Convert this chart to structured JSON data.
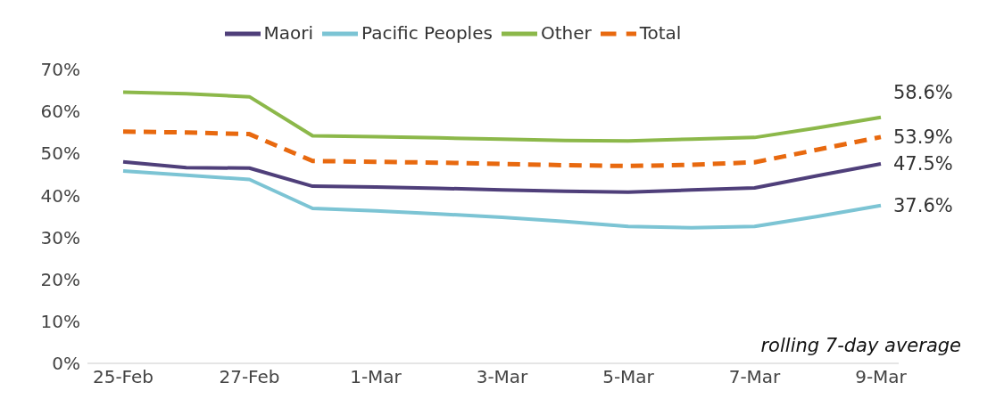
{
  "chart_data": {
    "type": "line",
    "categories": [
      "25-Feb",
      null,
      "27-Feb",
      null,
      "1-Mar",
      null,
      "3-Mar",
      null,
      "5-Mar",
      null,
      "7-Mar",
      null,
      "9-Mar"
    ],
    "series": [
      {
        "name": "Maori",
        "color": "#4f3f7a",
        "values": [
          48.0,
          46.6,
          46.5,
          42.2,
          42.0,
          41.7,
          41.3,
          41.0,
          40.8,
          41.3,
          41.8,
          44.7,
          47.5
        ],
        "value_labels": [
          null,
          null,
          null,
          null,
          null,
          null,
          null,
          null,
          null,
          null,
          null,
          null,
          "47.5%"
        ]
      },
      {
        "name": "Pacific Peoples",
        "color": "#7cc4d4",
        "values": [
          45.8,
          44.8,
          43.8,
          36.9,
          36.3,
          35.6,
          34.8,
          33.8,
          32.6,
          32.3,
          32.6,
          35.0,
          37.6
        ],
        "value_labels": [
          null,
          null,
          null,
          null,
          null,
          null,
          null,
          null,
          null,
          null,
          null,
          null,
          "37.6%"
        ]
      },
      {
        "name": "Other",
        "color": "#8cb84a",
        "values": [
          64.6,
          64.2,
          63.5,
          54.2,
          54.0,
          53.7,
          53.4,
          53.1,
          53.0,
          53.4,
          53.8,
          56.1,
          58.6
        ],
        "value_labels": [
          null,
          null,
          null,
          null,
          null,
          null,
          null,
          null,
          null,
          null,
          null,
          null,
          "58.6%"
        ]
      },
      {
        "name": "Total",
        "color": "#e8690f",
        "line_style": "dashed",
        "values": [
          55.2,
          55.0,
          54.6,
          48.2,
          48.0,
          47.8,
          47.5,
          47.2,
          47.0,
          47.3,
          47.9,
          50.9,
          53.9
        ],
        "value_labels": [
          null,
          null,
          null,
          null,
          null,
          null,
          null,
          null,
          null,
          null,
          null,
          null,
          "53.9%"
        ]
      }
    ],
    "ylim": [
      0,
      70
    ],
    "yticks": [
      {
        "value": 0,
        "label": "0%"
      },
      {
        "value": 10,
        "label": "10%"
      },
      {
        "value": 20,
        "label": "20%"
      },
      {
        "value": 30,
        "label": "30%"
      },
      {
        "value": 40,
        "label": "40%"
      },
      {
        "value": 50,
        "label": "50%"
      },
      {
        "value": 60,
        "label": "60%"
      },
      {
        "value": 70,
        "label": "70%"
      }
    ],
    "grid": false,
    "legend": "top",
    "marker": "none",
    "annotations": [
      "rolling 7-day average"
    ]
  }
}
